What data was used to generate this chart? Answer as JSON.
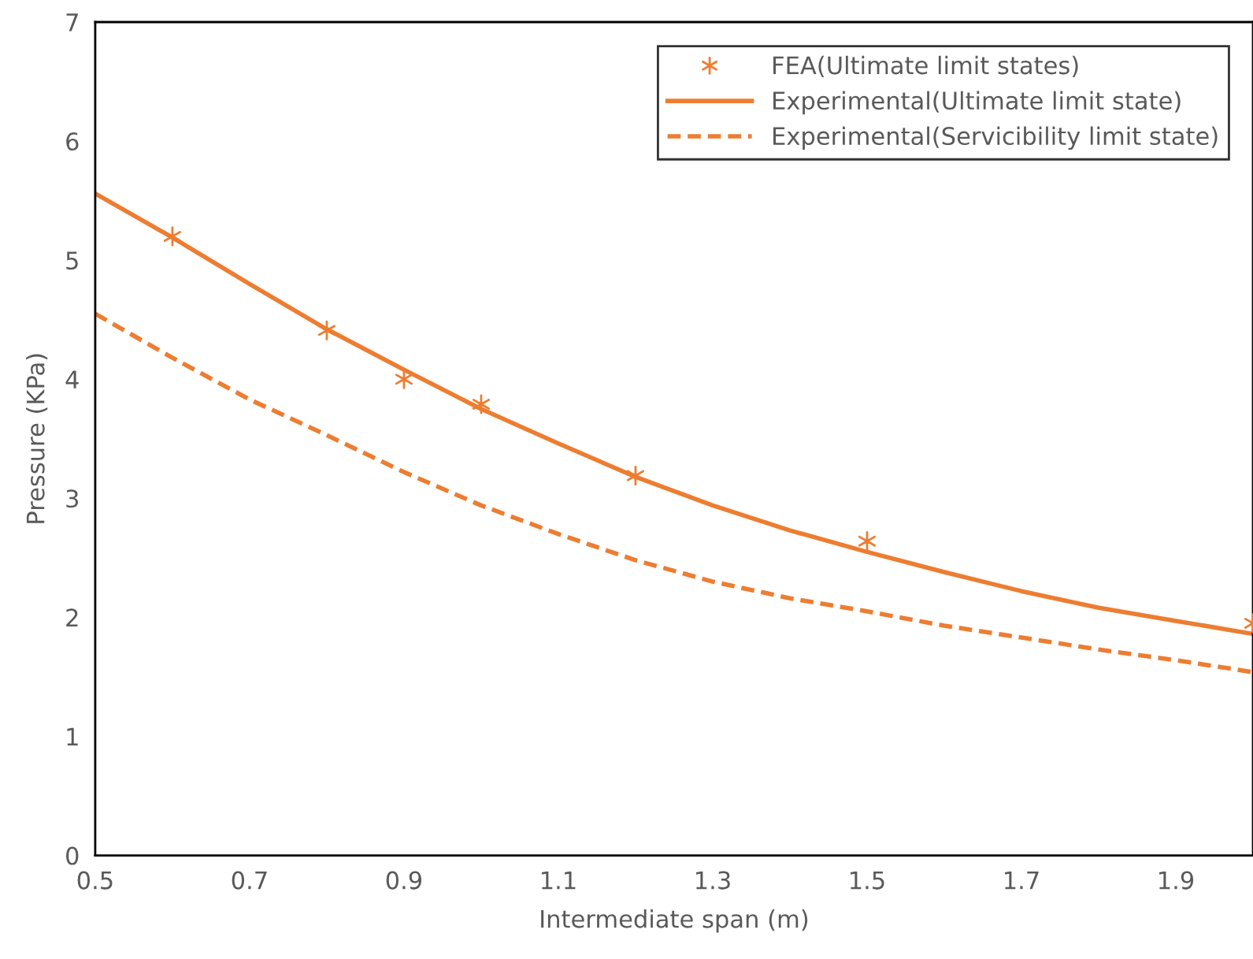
{
  "chart_data": {
    "type": "line",
    "xlabel": "Intermediate span (m)",
    "ylabel": "Pressure (KPa)",
    "xlim": [
      0.5,
      2.0
    ],
    "xticks": [
      0.5,
      0.7,
      0.9,
      1.1,
      1.3,
      1.5,
      1.7,
      1.9
    ],
    "ylim": [
      0,
      7
    ],
    "yticks": [
      0,
      1,
      2,
      3,
      4,
      5,
      6,
      7
    ],
    "grid": false,
    "legend": "top right",
    "series": [
      {
        "name": "FEA(Ultimate limit states)",
        "type": "scatter",
        "marker": "cross",
        "color": "#ed7d31",
        "x": [
          0.6,
          0.8,
          0.9,
          1.0,
          1.2,
          1.5,
          2.0
        ],
        "values": [
          5.2,
          4.41,
          4.0,
          3.79,
          3.19,
          2.64,
          1.95
        ]
      },
      {
        "name": "Experimental(Ultimate limit state)",
        "line_style": "solid",
        "color": "#ed7d31",
        "x": [
          0.5,
          0.6,
          0.7,
          0.8,
          0.9,
          1.0,
          1.1,
          1.2,
          1.3,
          1.4,
          1.5,
          1.6,
          1.7,
          1.8,
          1.9,
          2.0
        ],
        "values": [
          5.56,
          5.19,
          4.8,
          4.42,
          4.08,
          3.75,
          3.46,
          3.18,
          2.94,
          2.73,
          2.55,
          2.38,
          2.22,
          2.08,
          1.97,
          1.86
        ]
      },
      {
        "name": "Experimental(Servicibility limit state)",
        "line_style": "dashed",
        "color": "#ed7d31",
        "x": [
          0.5,
          0.6,
          0.7,
          0.8,
          0.9,
          1.0,
          1.1,
          1.2,
          1.3,
          1.4,
          1.5,
          1.6,
          1.7,
          1.8,
          1.9,
          2.0
        ],
        "values": [
          4.55,
          4.18,
          3.83,
          3.53,
          3.22,
          2.94,
          2.7,
          2.48,
          2.3,
          2.16,
          2.05,
          1.93,
          1.83,
          1.73,
          1.64,
          1.54
        ]
      }
    ]
  }
}
